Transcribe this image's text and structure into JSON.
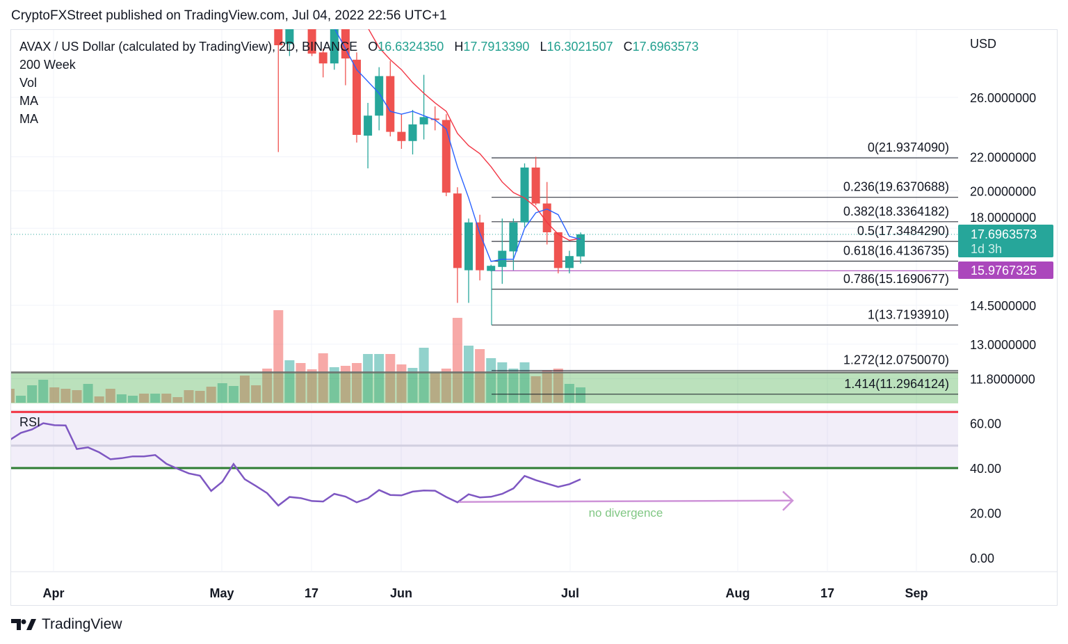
{
  "published": "CryptoFXStreet published on TradingView.com, Jul 04, 2022 22:56 UTC+1",
  "legend": {
    "symbol": "AVAX / US Dollar (calculated by TradingView), 2D, BINANCE",
    "o_label": "O",
    "o": "16.6324350",
    "h_label": "H",
    "h": "17.7913390",
    "l_label": "L",
    "l": "16.3021507",
    "c_label": "C",
    "c": "17.6963573",
    "indicators": [
      "200 Week",
      "Vol",
      "MA",
      "MA"
    ]
  },
  "colors": {
    "up": "#26a69a",
    "down": "#ef5350",
    "ma_fast": "#2962ff",
    "ma_slow": "#f23645",
    "rsi": "#7e57c2",
    "fib": "#131722",
    "support": "#ab47bc"
  },
  "chart_data": {
    "type": "candlestick",
    "title": "AVAX / US Dollar, 2D, BINANCE",
    "currency_label": "USD",
    "price_ticks": [
      "26.0000000",
      "22.0000000",
      "20.0000000",
      "18.0000000",
      "14.5000000",
      "13.0000000",
      "11.8000000"
    ],
    "price_tick_values": [
      26,
      22,
      20,
      18,
      14.5,
      13,
      11.8
    ],
    "x_ticks": [
      "Apr",
      "May",
      "17",
      "Jun",
      "Jul",
      "Aug",
      "17",
      "Sep"
    ],
    "scale": "log",
    "candles": [
      {
        "o": 31.8,
        "h": 32.5,
        "l": 22.3,
        "c": 30.1
      },
      {
        "o": 30.2,
        "h": 32.5,
        "l": 29.2,
        "c": 31.8
      },
      {
        "o": 33.0,
        "h": 34.0,
        "l": 31.5,
        "c": 32.0
      },
      {
        "o": 31.8,
        "h": 32.5,
        "l": 29.2,
        "c": 29.4
      },
      {
        "o": 29.5,
        "h": 29.8,
        "l": 27.5,
        "c": 28.6
      },
      {
        "o": 28.6,
        "h": 32.5,
        "l": 28.1,
        "c": 31.8
      },
      {
        "o": 31.8,
        "h": 32.5,
        "l": 26.9,
        "c": 29.0
      },
      {
        "o": 28.9,
        "h": 29.5,
        "l": 22.9,
        "c": 23.4
      },
      {
        "o": 23.35,
        "h": 25.6,
        "l": 21.3,
        "c": 24.7
      },
      {
        "o": 24.7,
        "h": 28.3,
        "l": 23.7,
        "c": 27.6
      },
      {
        "o": 27.6,
        "h": 28.8,
        "l": 23.3,
        "c": 23.6
      },
      {
        "o": 23.6,
        "h": 24.8,
        "l": 22.5,
        "c": 23.0
      },
      {
        "o": 23.0,
        "h": 25.1,
        "l": 22.15,
        "c": 24.1
      },
      {
        "o": 24.1,
        "h": 27.7,
        "l": 23.1,
        "c": 24.6
      },
      {
        "o": 24.5,
        "h": 25.35,
        "l": 23.7,
        "c": 24.4
      },
      {
        "o": 24.4,
        "h": 24.8,
        "l": 19.7,
        "c": 19.9
      },
      {
        "o": 19.85,
        "h": 20.2,
        "l": 14.6,
        "c": 16.1
      },
      {
        "o": 16.0,
        "h": 18.5,
        "l": 14.6,
        "c": 18.3
      },
      {
        "o": 18.3,
        "h": 18.7,
        "l": 15.55,
        "c": 16.0
      },
      {
        "o": 15.97,
        "h": 16.25,
        "l": 15.95,
        "c": 16.2
      },
      {
        "o": 16.15,
        "h": 18.5,
        "l": 15.4,
        "c": 16.9
      },
      {
        "o": 16.87,
        "h": 18.5,
        "l": 16.0,
        "c": 18.3
      },
      {
        "o": 18.3,
        "h": 21.6,
        "l": 18.05,
        "c": 21.35
      },
      {
        "o": 21.35,
        "h": 22.0,
        "l": 19.2,
        "c": 19.3
      },
      {
        "o": 19.3,
        "h": 20.5,
        "l": 17.2,
        "c": 17.8
      },
      {
        "o": 17.8,
        "h": 17.8,
        "l": 15.86,
        "c": 16.1
      },
      {
        "o": 16.1,
        "h": 16.9,
        "l": 15.86,
        "c": 16.65
      },
      {
        "o": 16.632435,
        "h": 17.791339,
        "l": 16.3021507,
        "c": 17.6963573
      }
    ],
    "ma_fast": [
      null,
      null,
      null,
      null,
      null,
      31.6,
      null,
      28.1,
      null,
      26.3,
      25.0,
      24.8,
      25.0,
      24.7,
      24.4,
      23.8,
      21.4,
      19.6,
      17.75,
      16.4,
      16.5,
      16.5,
      18.0,
      18.8,
      19.0,
      18.7,
      17.6,
      17.45
    ],
    "ma_slow": [
      null,
      null,
      null,
      null,
      null,
      null,
      null,
      null,
      31.6,
      29.9,
      28.9,
      28.1,
      27.1,
      26.3,
      25.6,
      25.0,
      23.5,
      22.7,
      22.2,
      21.4,
      20.5,
      19.9,
      19.6,
      19.1,
      18.3,
      17.7,
      17.4,
      17.5
    ],
    "volume_relative": [
      20,
      10,
      25,
      33,
      22,
      20,
      18,
      27,
      9,
      20,
      12,
      10,
      13,
      13,
      13,
      8,
      18,
      17,
      23,
      28,
      24,
      39,
      25,
      49,
      133,
      61,
      57,
      48,
      71,
      51,
      53,
      57,
      70,
      70,
      70,
      55,
      50,
      79,
      43,
      49,
      122,
      82,
      77,
      64,
      58,
      49,
      58,
      38,
      46,
      49,
      27,
      22
    ],
    "volume_dir": [
      "d",
      "u",
      "u",
      "u",
      "d",
      "d",
      "d",
      "u",
      "d",
      "d",
      "u",
      "u",
      "d",
      "u",
      "d",
      "d",
      "d",
      "d",
      "d",
      "u",
      "u",
      "d",
      "d",
      "d",
      "d",
      "u",
      "d",
      "d",
      "d",
      "u",
      "d",
      "d",
      "u",
      "u",
      "d",
      "d",
      "u",
      "u",
      "d",
      "d",
      "d",
      "u",
      "d",
      "u",
      "u",
      "u",
      "u",
      "d",
      "d",
      "d",
      "u",
      "u"
    ],
    "volume_ma_relative": 44,
    "fib_levels": [
      {
        "label": "0(21.9374090)",
        "value": 21.937409
      },
      {
        "label": "0.236(19.6370688)",
        "value": 19.6370688
      },
      {
        "label": "0.382(18.3364182)",
        "value": 18.3364182
      },
      {
        "label": "0.5(17.3484290)",
        "value": 17.348429
      },
      {
        "label": "0.618(16.4136735)",
        "value": 16.4136735
      },
      {
        "label": "0.786(15.1690677)",
        "value": 15.1690677
      },
      {
        "label": "1(13.7193910)",
        "value": 13.719391
      },
      {
        "label": "1.272(12.0750070)",
        "value": 12.075007
      },
      {
        "label": "1.414(11.2964124)",
        "value": 11.2964124
      }
    ],
    "last_price": {
      "value": 17.6963573,
      "label": "17.6963573",
      "countdown": "1d 3h"
    },
    "support_line": {
      "value": 15.9767325,
      "label": "15.9767325"
    },
    "rsi": {
      "label": "RSI",
      "ticks": [
        "60.00",
        "40.00",
        "20.00",
        "0.00"
      ],
      "tick_values": [
        60,
        40,
        20,
        0
      ],
      "upper_band": 65,
      "middle": 50,
      "lower_band": 40,
      "values": [
        52.5,
        55.7,
        57.2,
        60.0,
        59.1,
        59.0,
        48.5,
        49.2,
        47.0,
        43.9,
        44.4,
        45.2,
        45.2,
        45.8,
        41.9,
        39.7,
        37.6,
        36.6,
        29.8,
        33.9,
        41.8,
        35.0,
        32.0,
        28.8,
        23.3,
        27.1,
        26.6,
        25.3,
        25.1,
        28.5,
        27.3,
        24.7,
        26.5,
        30.2,
        28.0,
        27.8,
        29.5,
        30.0,
        29.9,
        27.1,
        24.7,
        28.3,
        26.9,
        27.2,
        28.5,
        30.9,
        36.5,
        34.6,
        33.1,
        31.6,
        32.8,
        35.0
      ],
      "annotation": "no divergence",
      "arrow_level": 25.2
    }
  },
  "footer": {
    "brand": "TradingView"
  }
}
